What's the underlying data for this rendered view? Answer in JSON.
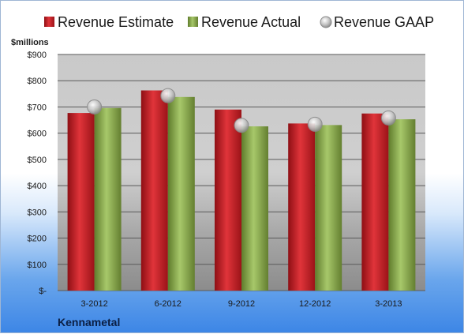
{
  "chart_data": {
    "type": "bar",
    "title": "",
    "ylabel": "$millions",
    "xlabel": "",
    "company": "Kennametal",
    "categories": [
      "3-2012",
      "6-2012",
      "9-2012",
      "12-2012",
      "3-2013"
    ],
    "series": [
      {
        "name": "Revenue Estimate",
        "kind": "bar",
        "color": "#d0232a",
        "values": [
          677,
          763,
          690,
          637,
          675
        ]
      },
      {
        "name": "Revenue Actual",
        "kind": "bar",
        "color": "#8db04c",
        "values": [
          696,
          738,
          626,
          631,
          653
        ]
      },
      {
        "name": "Revenue GAAP",
        "kind": "marker",
        "color": "#c7c7c7",
        "values": [
          700,
          743,
          630,
          634,
          658
        ]
      }
    ],
    "ylim": [
      0,
      900
    ],
    "yticks": [
      0,
      100,
      200,
      300,
      400,
      500,
      600,
      700,
      800,
      900
    ],
    "ytick_labels": [
      "$-",
      "$100",
      "$200",
      "$300",
      "$400",
      "$500",
      "$600",
      "$700",
      "$800",
      "$900"
    ],
    "grid": true,
    "legend_position": "top"
  }
}
